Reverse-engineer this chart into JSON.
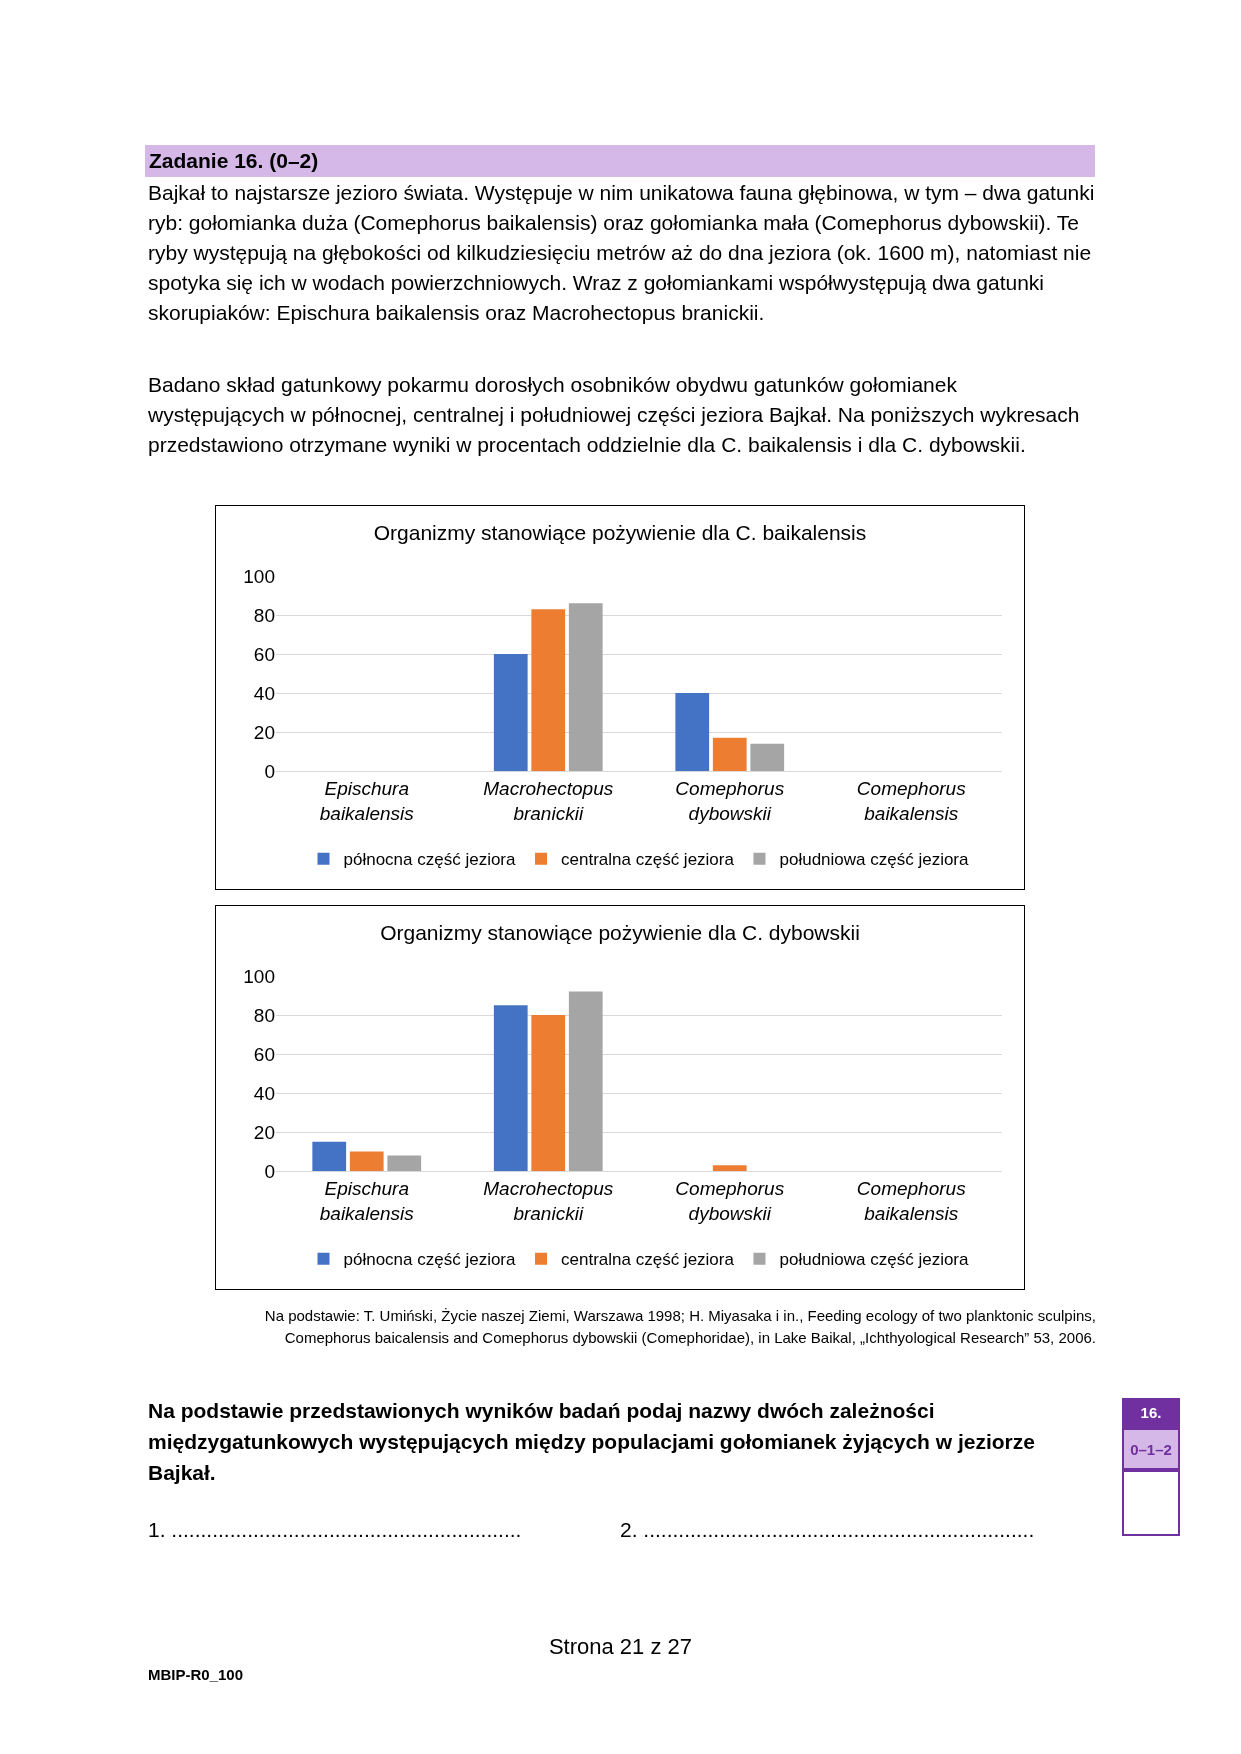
{
  "chart_data": [
    {
      "type": "bar",
      "title": "Organizmy stanowiące pożywienie dla C. baikalensis",
      "annotations": [
        "Zadanie 16. (0–2)",
        "Bajkał to najstarsze jezioro świata. Występuje w nim unikatowa fauna głębinowa, w tym – dwa gatunki ryb: gołomianka duża (Comephorus baikalensis) oraz gołomianka mała (Comephorus dybowskii). Te ryby występują na głębokości od kilkudziesięciu metrów aż do dna jeziora (ok. 1600 m), natomiast nie spotyka się ich w wodach powierzchniowych. Wraz z gołomiankami współwystępują dwa gatunki skorupiaków: Epischura baikalensis oraz Macrohectopus branickii.",
        "Badano skład gatunkowy pokarmu dorosłych osobników obydwu gatunków gołomianek występujących w północnej, centralnej i południowej części jeziora Bajkał. Na poniższych wykresach przedstawiono otrzymane wyniki w procentach oddzielnie dla C. baikalensis i dla C. dybowskii."
      ],
      "categories": [
        "Epischura baikalensis",
        "Macrohectopus branickii",
        "Comephorus dybowskii",
        "Comephorus baikalensis"
      ],
      "series": [
        {
          "name": "północna część jeziora",
          "color": "#4472c4",
          "values": [
            0,
            60,
            40,
            0
          ]
        },
        {
          "name": "centralna część jeziora",
          "color": "#ed7d31",
          "values": [
            0,
            83,
            17,
            0
          ]
        },
        {
          "name": "południowa część jeziora",
          "color": "#a5a5a5",
          "values": [
            0,
            86,
            14,
            0
          ]
        }
      ],
      "ylim": [
        0,
        100
      ],
      "yticks": [
        0,
        20,
        40,
        60,
        80,
        100
      ],
      "grid": "y",
      "legend": "bottom"
    },
    {
      "type": "bar",
      "title": "Organizmy stanowiące pożywienie dla C. dybowskii",
      "annotations": [
        "Na podstawie: T. Umiński, Życie naszej Ziemi, Warszawa 1998; H. Miyasaka i in., Feeding ecology of two planktonic sculpins, Comephorus baicalensis and Comephorus dybowskii (Comephoridae), in Lake Baikal, „Ichthyological Research” 53, 2006.",
        "Na podstawie przedstawionych wyników badań podaj nazwy dwóch zależności międzygatunkowych występujących między populacjami gołomianek żyjących w jeziorze Bajkał.",
        "1. ............................................................",
        "2. ...................................................................",
        "16.",
        "0–1–2",
        "Strona 21 z 27",
        "MBIP-R0_100"
      ],
      "categories": [
        "Epischura baikalensis",
        "Macrohectopus branickii",
        "Comephorus dybowskii",
        "Comephorus baikalensis"
      ],
      "series": [
        {
          "name": "północna część jeziora",
          "color": "#4472c4",
          "values": [
            15,
            85,
            0,
            0
          ]
        },
        {
          "name": "centralna część jeziora",
          "color": "#ed7d31",
          "values": [
            10,
            80,
            3,
            0
          ]
        },
        {
          "name": "południowa część jeziora",
          "color": "#a5a5a5",
          "values": [
            8,
            92,
            0,
            0
          ]
        }
      ],
      "ylim": [
        0,
        100
      ],
      "yticks": [
        0,
        20,
        40,
        60,
        80,
        100
      ],
      "grid": "y",
      "legend": "bottom"
    }
  ]
}
